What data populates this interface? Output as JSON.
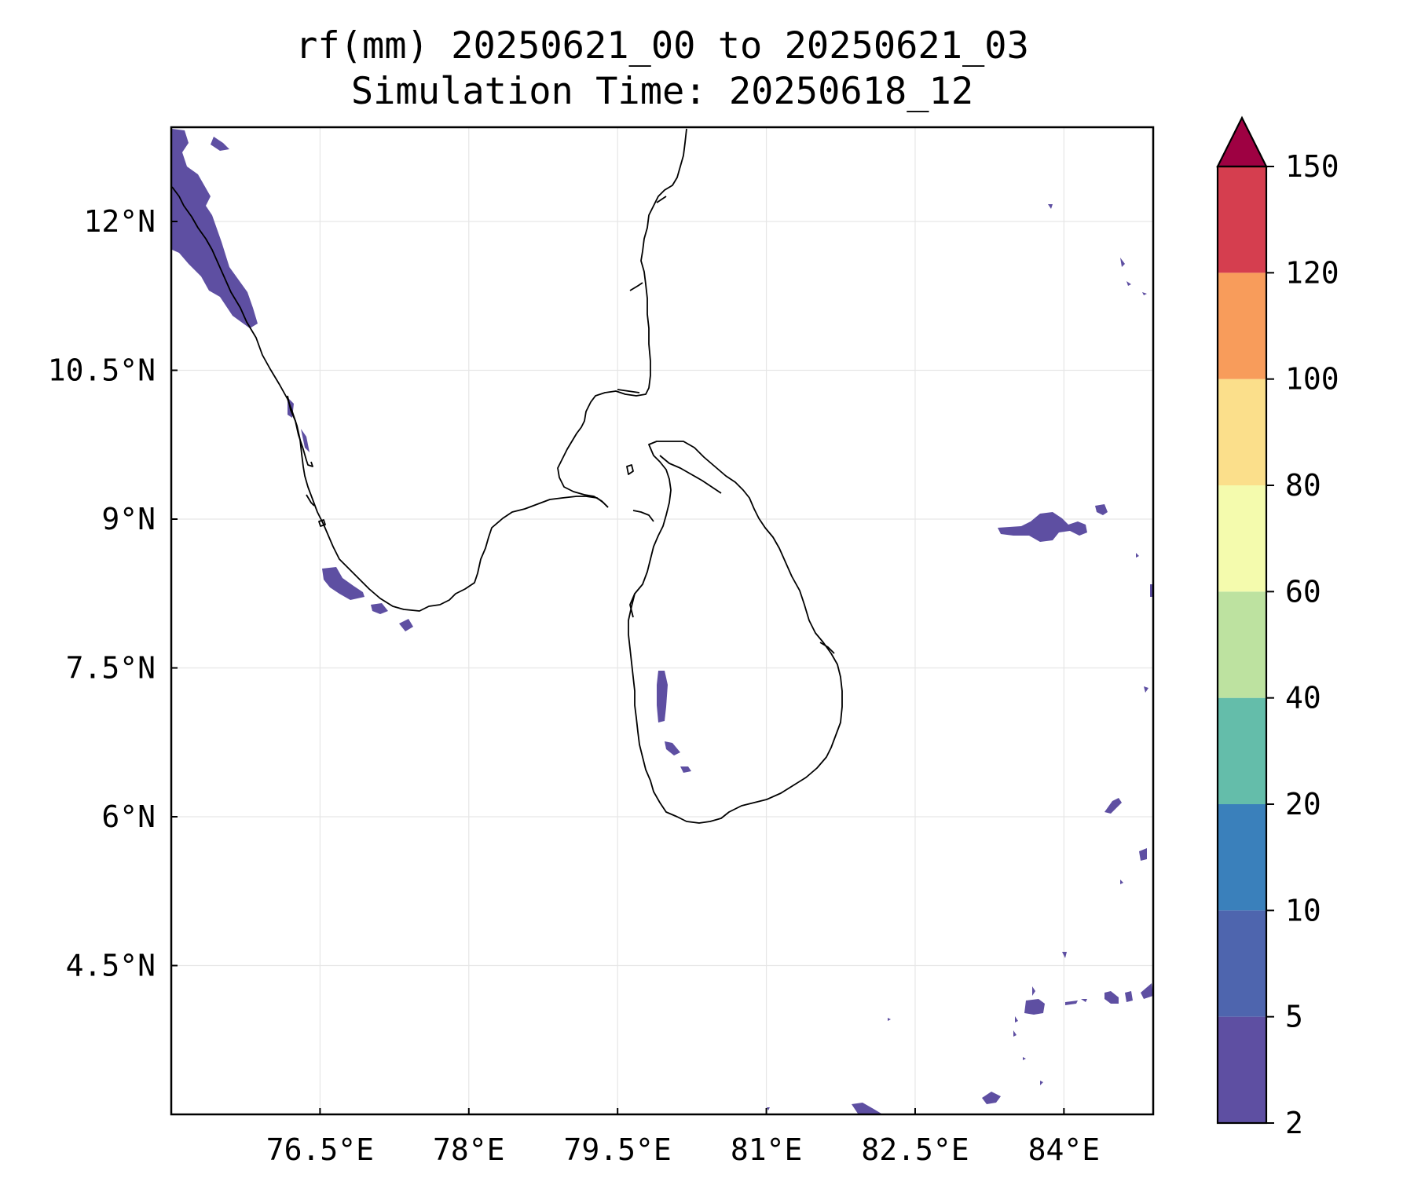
{
  "title": {
    "line1": "rf(mm) 20250621_00 to 20250621_03",
    "line2": "Simulation Time: 20250618_12"
  },
  "map": {
    "lon_range": [
      75.0,
      84.9
    ],
    "lat_range": [
      3.0,
      12.95
    ],
    "x_ticks": [
      {
        "value": 76.5,
        "label": "76.5°E"
      },
      {
        "value": 78.0,
        "label": "78°E"
      },
      {
        "value": 79.5,
        "label": "79.5°E"
      },
      {
        "value": 81.0,
        "label": "81°E"
      },
      {
        "value": 82.5,
        "label": "82.5°E"
      },
      {
        "value": 84.0,
        "label": "84°E"
      }
    ],
    "y_ticks": [
      {
        "value": 12.0,
        "label": "12°N"
      },
      {
        "value": 10.5,
        "label": "10.5°N"
      },
      {
        "value": 9.0,
        "label": "9°N"
      },
      {
        "value": 7.5,
        "label": "7.5°N"
      },
      {
        "value": 6.0,
        "label": "6°N"
      },
      {
        "value": 4.5,
        "label": "4.5°N"
      }
    ],
    "gridlines": true,
    "coastline_color": "#000000",
    "rain_color": "#5e4fa2"
  },
  "colorbar": {
    "levels": [
      2,
      5,
      10,
      20,
      40,
      60,
      80,
      100,
      120,
      150
    ],
    "tick_labels": [
      "2",
      "5",
      "10",
      "20",
      "40",
      "60",
      "80",
      "100",
      "120",
      "150"
    ],
    "colors": [
      "#5e4fa2",
      "#4e65ae",
      "#3a80bb",
      "#64bdaa",
      "#bde2a0",
      "#f4fbad",
      "#fbdf8b",
      "#f89c5b",
      "#d53e4f"
    ],
    "extend_color": "#9e0142",
    "extend": "max"
  }
}
